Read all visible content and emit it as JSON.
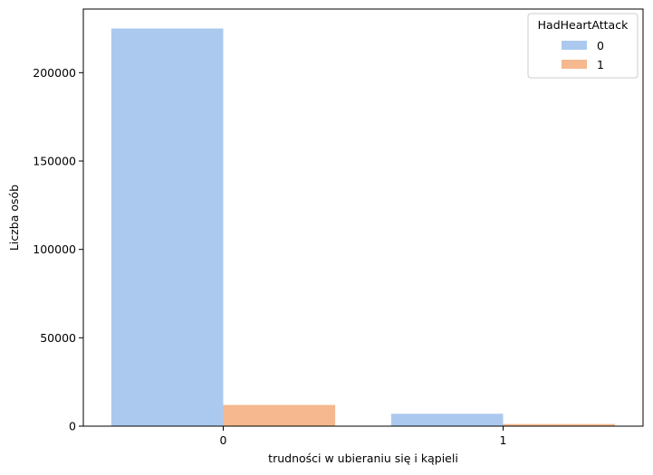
{
  "chart_data": {
    "type": "bar",
    "title": "",
    "xlabel": "trudności w ubieraniu się i kąpieli",
    "ylabel": "Liczba osób",
    "categories": [
      "0",
      "1"
    ],
    "series": [
      {
        "name": "0",
        "color": "#abc9ef",
        "values": [
          225000,
          7000
        ]
      },
      {
        "name": "1",
        "color": "#f5b88f",
        "values": [
          12000,
          1200
        ]
      }
    ],
    "ylim": [
      0,
      236000
    ],
    "yticks": [
      0,
      50000,
      100000,
      150000,
      200000
    ],
    "ytick_labels": [
      "0",
      "50000",
      "100000",
      "150000",
      "200000"
    ],
    "grid": false,
    "legend": {
      "title": "HadHeartAttack",
      "placement": "top-right"
    }
  }
}
